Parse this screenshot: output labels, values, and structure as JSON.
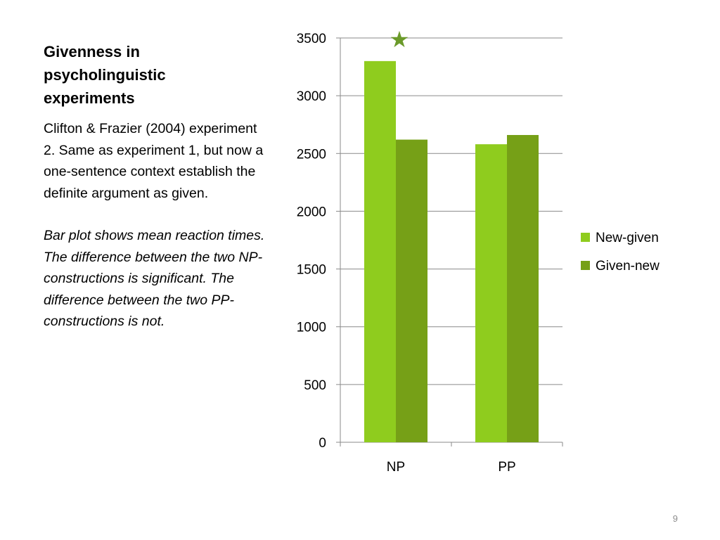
{
  "slide": {
    "title": "Givenness in psycholinguistic experiments",
    "paragraph1": "Clifton & Frazier (2004) experiment 2. Same as experiment 1, but now a one-sentence context establish the definite argument as given.",
    "paragraph2": "Bar plot shows mean reaction times. The difference between the two NP-constructions is significant. The difference between the two PP-constructions is not.",
    "page_number": "9"
  },
  "chart_data": {
    "type": "bar",
    "categories": [
      "NP",
      "PP"
    ],
    "series": [
      {
        "name": "New-given",
        "values": [
          3300,
          2580
        ],
        "color": "#8fcc1e"
      },
      {
        "name": "Given-new",
        "values": [
          2620,
          2660
        ],
        "color": "#76a017"
      }
    ],
    "ylim": [
      0,
      3500
    ],
    "yticks": [
      0,
      500,
      1000,
      1500,
      2000,
      2500,
      3000,
      3500
    ],
    "grid": true,
    "legend_position": "right",
    "annotations": [
      {
        "symbol": "★",
        "category": "NP",
        "meaning": "significant difference",
        "color": "#6b9a2a"
      }
    ]
  }
}
